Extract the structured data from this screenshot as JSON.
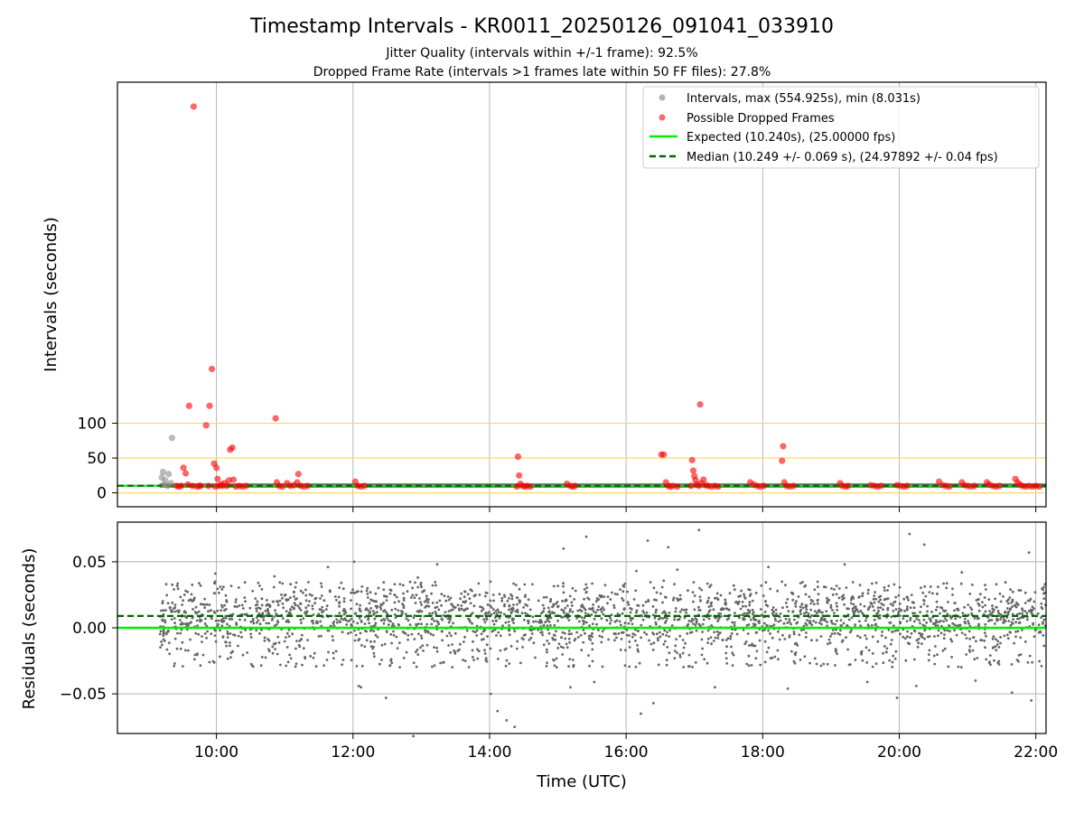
{
  "chart_data": [
    {
      "type": "scatter",
      "panel": "intervals",
      "title": "Timestamp Intervals - KR0011_20250126_091041_033910",
      "subtitle_1": "Jitter Quality (intervals within +/-1 frame): 92.5%",
      "subtitle_2": "Dropped Frame Rate (intervals >1 frames late within 50 FF files): 27.8%",
      "ylabel": "Intervals (seconds)",
      "xlim": [
        "08:33",
        "22:09"
      ],
      "ylim": [
        -20,
        590
      ],
      "yticks": [
        "0",
        "50",
        "100"
      ],
      "xticks": [
        "10:00",
        "12:00",
        "14:00",
        "16:00",
        "18:00",
        "20:00",
        "22:00"
      ],
      "grid": "x only, plus horizontal reference lines at 0, 50, 100",
      "reference_line_color": "#ffd56b",
      "legend_position": "top-right",
      "legend": {
        "intervals": "Intervals, max (554.925s), min (8.031s)",
        "dropped": "Possible Dropped Frames",
        "expected": "Expected (10.240s), (25.00000 fps)",
        "median": "Median (10.249 +/- 0.069 s), (24.97892 +/- 0.04 fps)"
      },
      "expected_value": 10.24,
      "median_value": 10.249,
      "colors": {
        "intervals": "#8c8c8c",
        "dropped": "#ff0000",
        "expected": "#00ee00",
        "median": "#006400",
        "normal_band": "#4a4a4a"
      },
      "series": [
        {
          "name": "Intervals, max (554.925s), min (8.031s)",
          "points": [
            [
              "09:12",
              22
            ],
            [
              "09:13",
              30
            ],
            [
              "09:15",
              18
            ],
            [
              "09:18",
              27
            ],
            [
              "09:20",
              14
            ],
            [
              "09:21",
              79
            ],
            [
              "09:14",
              12
            ],
            [
              "09:17",
              10
            ]
          ]
        },
        {
          "name": "Possible Dropped Frames",
          "points": [
            [
              "09:25",
              10
            ],
            [
              "09:27",
              9
            ],
            [
              "09:29",
              10
            ],
            [
              "09:31",
              36
            ],
            [
              "09:33",
              28
            ],
            [
              "09:35",
              12
            ],
            [
              "09:36",
              125
            ],
            [
              "09:39",
              10
            ],
            [
              "09:40",
              555
            ],
            [
              "09:43",
              9
            ],
            [
              "09:45",
              10
            ],
            [
              "09:46",
              10
            ],
            [
              "09:51",
              97
            ],
            [
              "09:53",
              10
            ],
            [
              "09:54",
              125
            ],
            [
              "09:56",
              178
            ],
            [
              "09:58",
              42
            ],
            [
              "09:59",
              9
            ],
            [
              "10:00",
              36
            ],
            [
              "10:01",
              20
            ],
            [
              "10:02",
              10
            ],
            [
              "10:04",
              12
            ],
            [
              "10:05",
              10
            ],
            [
              "10:07",
              14
            ],
            [
              "10:09",
              10
            ],
            [
              "10:11",
              18
            ],
            [
              "10:12",
              62
            ],
            [
              "10:14",
              65
            ],
            [
              "10:15",
              19
            ],
            [
              "10:17",
              9
            ],
            [
              "10:20",
              10
            ],
            [
              "10:23",
              9
            ],
            [
              "10:26",
              10
            ],
            [
              "10:52",
              107
            ],
            [
              "10:53",
              15
            ],
            [
              "10:55",
              10
            ],
            [
              "10:58",
              9
            ],
            [
              "11:02",
              14
            ],
            [
              "11:05",
              10
            ],
            [
              "11:08",
              11
            ],
            [
              "11:11",
              15
            ],
            [
              "11:12",
              27
            ],
            [
              "11:14",
              10
            ],
            [
              "11:17",
              9
            ],
            [
              "11:20",
              10
            ],
            [
              "12:02",
              16
            ],
            [
              "12:04",
              10
            ],
            [
              "12:07",
              9
            ],
            [
              "12:10",
              10
            ],
            [
              "14:24",
              9
            ],
            [
              "14:25",
              52
            ],
            [
              "14:26",
              25
            ],
            [
              "14:27",
              13
            ],
            [
              "14:29",
              10
            ],
            [
              "14:31",
              9
            ],
            [
              "14:33",
              10
            ],
            [
              "14:36",
              9
            ],
            [
              "15:08",
              13
            ],
            [
              "15:11",
              10
            ],
            [
              "15:13",
              9
            ],
            [
              "15:15",
              10
            ],
            [
              "16:31",
              55
            ],
            [
              "16:33",
              55
            ],
            [
              "16:35",
              15
            ],
            [
              "16:37",
              10
            ],
            [
              "16:39",
              9
            ],
            [
              "16:41",
              10
            ],
            [
              "16:45",
              9
            ],
            [
              "16:57",
              10
            ],
            [
              "16:58",
              47
            ],
            [
              "16:59",
              32
            ],
            [
              "17:00",
              24
            ],
            [
              "17:01",
              18
            ],
            [
              "17:02",
              12
            ],
            [
              "17:04",
              10
            ],
            [
              "17:05",
              127
            ],
            [
              "17:06",
              14
            ],
            [
              "17:08",
              19
            ],
            [
              "17:10",
              11
            ],
            [
              "17:12",
              10
            ],
            [
              "17:15",
              9
            ],
            [
              "17:18",
              10
            ],
            [
              "17:21",
              9
            ],
            [
              "17:49",
              15
            ],
            [
              "17:52",
              12
            ],
            [
              "17:55",
              10
            ],
            [
              "17:58",
              9
            ],
            [
              "18:01",
              10
            ],
            [
              "18:17",
              46
            ],
            [
              "18:18",
              67
            ],
            [
              "18:19",
              15
            ],
            [
              "18:21",
              10
            ],
            [
              "18:24",
              9
            ],
            [
              "18:27",
              10
            ],
            [
              "19:08",
              14
            ],
            [
              "19:10",
              10
            ],
            [
              "19:13",
              9
            ],
            [
              "19:15",
              10
            ],
            [
              "19:35",
              11
            ],
            [
              "19:38",
              10
            ],
            [
              "19:41",
              9
            ],
            [
              "19:44",
              10
            ],
            [
              "19:58",
              11
            ],
            [
              "20:01",
              10
            ],
            [
              "20:04",
              9
            ],
            [
              "20:07",
              10
            ],
            [
              "20:35",
              16
            ],
            [
              "20:38",
              11
            ],
            [
              "20:41",
              10
            ],
            [
              "20:44",
              9
            ],
            [
              "20:55",
              15
            ],
            [
              "20:57",
              11
            ],
            [
              "21:00",
              10
            ],
            [
              "21:03",
              9
            ],
            [
              "21:06",
              10
            ],
            [
              "21:17",
              15
            ],
            [
              "21:19",
              12
            ],
            [
              "21:22",
              10
            ],
            [
              "21:25",
              9
            ],
            [
              "21:28",
              10
            ],
            [
              "21:42",
              20
            ],
            [
              "21:44",
              15
            ],
            [
              "21:46",
              12
            ],
            [
              "21:48",
              10
            ],
            [
              "21:51",
              9
            ],
            [
              "21:54",
              10
            ],
            [
              "21:57",
              9
            ],
            [
              "22:00",
              10
            ],
            [
              "22:03",
              9
            ]
          ]
        }
      ],
      "normal_band_range": [
        "09:10",
        "22:09"
      ]
    },
    {
      "type": "scatter",
      "panel": "residuals",
      "xlabel": "Time (UTC)",
      "ylabel": "Residuals (seconds)",
      "xlim": [
        "08:33",
        "22:09"
      ],
      "ylim": [
        -0.08,
        0.08
      ],
      "yticks": [
        "−0.05",
        "0.00",
        "0.05"
      ],
      "xticks": [
        "10:00",
        "12:00",
        "14:00",
        "16:00",
        "18:00",
        "20:00",
        "22:00"
      ],
      "grid": "x and y",
      "expected_residual": 0.0,
      "median_residual": 0.009,
      "point_color": "#666666",
      "residual_range": [
        "09:10",
        "22:09"
      ],
      "typical_spread": [
        -0.03,
        0.035
      ],
      "outliers": [
        [
          "09:59",
          0.041
        ],
        [
          "10:51",
          0.039
        ],
        [
          "11:38",
          0.046
        ],
        [
          "12:01",
          0.05
        ],
        [
          "12:05",
          -0.044
        ],
        [
          "12:07",
          -0.045
        ],
        [
          "12:29",
          -0.053
        ],
        [
          "12:53",
          -0.082
        ],
        [
          "12:57",
          0.038
        ],
        [
          "13:14",
          0.048
        ],
        [
          "14:01",
          -0.05
        ],
        [
          "14:07",
          -0.063
        ],
        [
          "14:15",
          -0.07
        ],
        [
          "14:22",
          -0.075
        ],
        [
          "15:05",
          0.06
        ],
        [
          "15:11",
          -0.045
        ],
        [
          "15:25",
          0.069
        ],
        [
          "15:32",
          -0.041
        ],
        [
          "16:09",
          0.043
        ],
        [
          "16:13",
          -0.065
        ],
        [
          "16:19",
          0.066
        ],
        [
          "16:24",
          -0.057
        ],
        [
          "16:37",
          0.061
        ],
        [
          "16:45",
          0.044
        ],
        [
          "17:04",
          0.074
        ],
        [
          "17:18",
          -0.045
        ],
        [
          "18:05",
          0.046
        ],
        [
          "18:22",
          -0.046
        ],
        [
          "19:12",
          0.048
        ],
        [
          "19:32",
          -0.041
        ],
        [
          "19:58",
          -0.053
        ],
        [
          "20:09",
          0.071
        ],
        [
          "20:15",
          -0.044
        ],
        [
          "20:22",
          0.063
        ],
        [
          "20:55",
          0.042
        ],
        [
          "21:07",
          -0.04
        ],
        [
          "21:39",
          -0.049
        ],
        [
          "21:54",
          0.057
        ],
        [
          "21:56",
          -0.055
        ],
        [
          "22:05",
          -0.029
        ],
        [
          "22:08",
          0.033
        ]
      ]
    }
  ]
}
